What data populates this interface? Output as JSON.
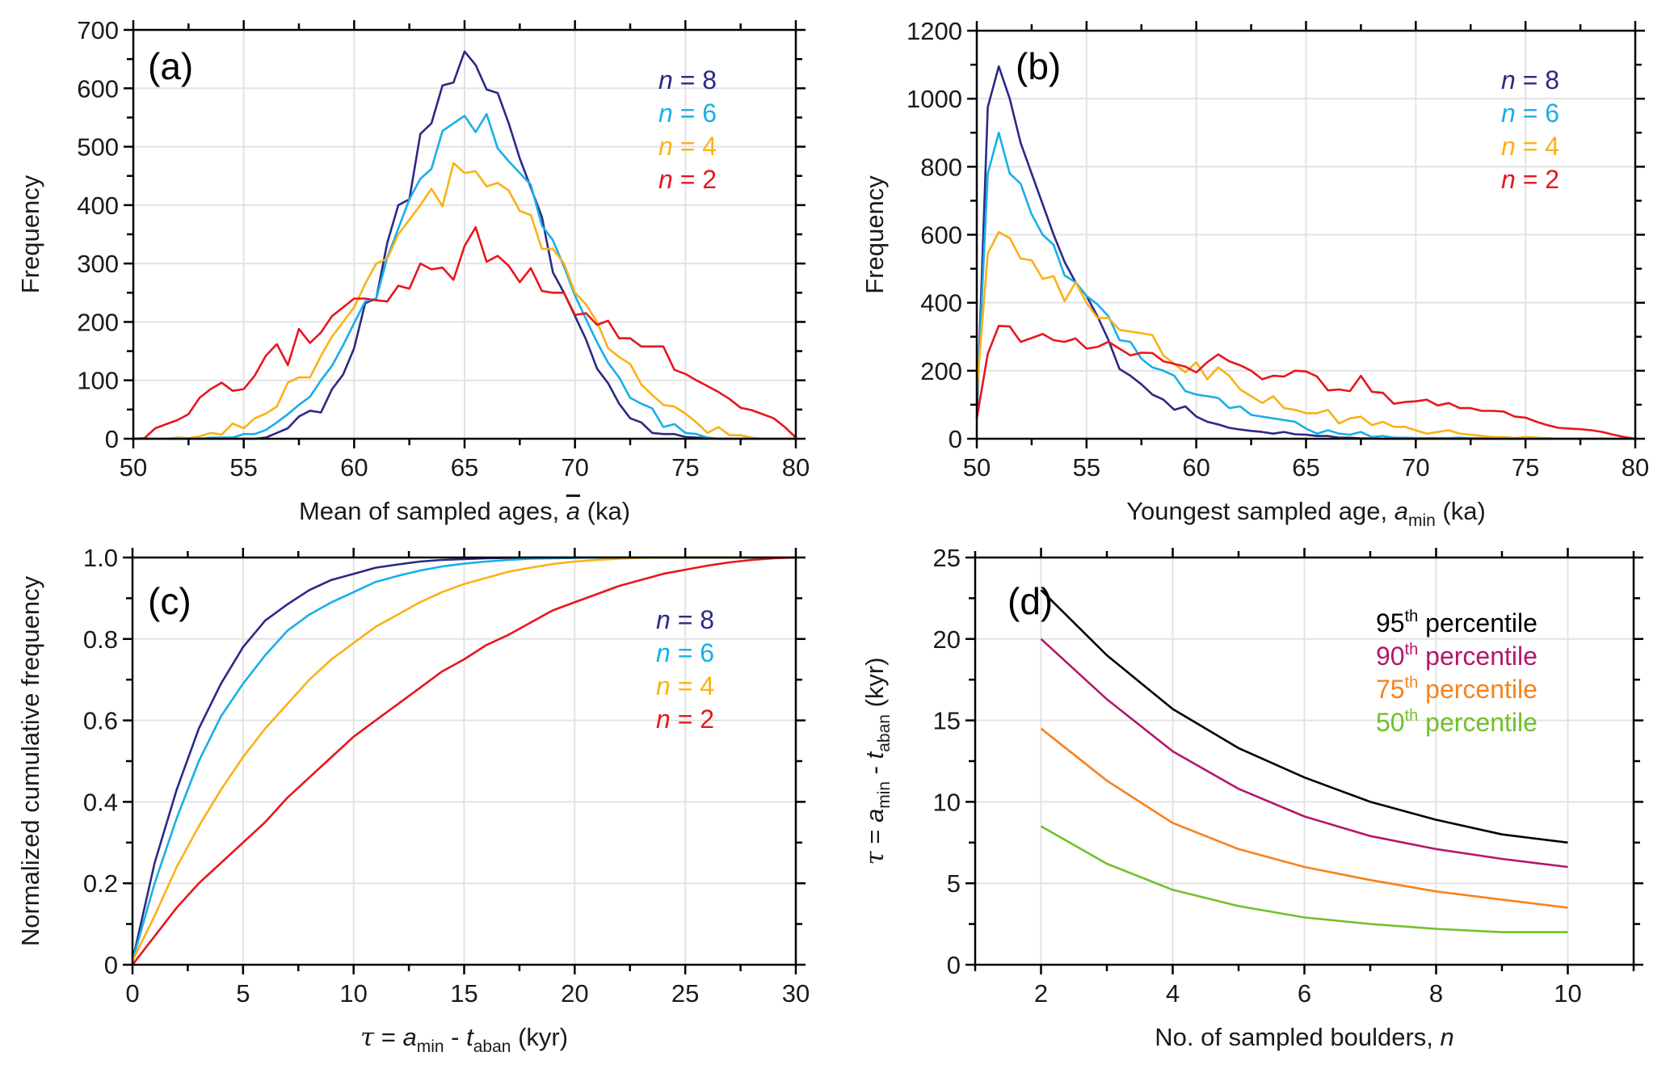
{
  "figure": {
    "legend_n": [
      {
        "italic": "n",
        "rest": " = 8",
        "color": "#2a2a86"
      },
      {
        "italic": "n",
        "rest": " = 6",
        "color": "#1aaee8"
      },
      {
        "italic": "n",
        "rest": " = 4",
        "color": "#fbb116"
      },
      {
        "italic": "n",
        "rest": " = 2",
        "color": "#e8161e"
      }
    ]
  },
  "chart_data": [
    {
      "id": "a",
      "type": "line",
      "panel_label": "(a)",
      "title": "",
      "xlabel": "Mean of sampled ages, ā (ka)",
      "xlabel_parts": {
        "pre": "Mean of sampled ages, ",
        "var": "a",
        "post": " (ka)"
      },
      "ylabel": "Frequency",
      "xlim": [
        50,
        80
      ],
      "ylim": [
        0,
        700
      ],
      "xticks": [
        50,
        55,
        60,
        65,
        70,
        75,
        80
      ],
      "yticks": [
        0,
        100,
        200,
        300,
        400,
        500,
        600,
        700
      ],
      "grid": true,
      "legend_position": "top-right",
      "x": [
        50,
        50.5,
        51,
        51.5,
        52,
        52.5,
        53,
        53.5,
        54,
        54.5,
        55,
        55.5,
        56,
        56.5,
        57,
        57.5,
        58,
        58.5,
        59,
        59.5,
        60,
        60.5,
        61,
        61.5,
        62,
        62.5,
        63,
        63.5,
        64,
        64.5,
        65,
        65.5,
        66,
        66.5,
        67,
        67.5,
        68,
        68.5,
        69,
        69.5,
        70,
        70.5,
        71,
        71.5,
        72,
        72.5,
        73,
        73.5,
        74,
        74.5,
        75,
        75.5,
        76,
        76.5,
        77,
        77.5,
        78,
        78.5,
        79,
        79.5,
        80
      ],
      "series": [
        {
          "name": "n = 8",
          "color": "#2a2a86",
          "values": [
            0,
            0,
            0,
            0,
            0,
            0,
            0,
            0,
            0,
            0,
            0,
            0,
            2,
            10,
            18,
            38,
            48,
            45,
            85,
            110,
            155,
            232,
            240,
            335,
            400,
            410,
            522,
            540,
            605,
            610,
            663,
            640,
            598,
            592,
            540,
            480,
            430,
            380,
            285,
            250,
            210,
            170,
            120,
            95,
            60,
            35,
            28,
            10,
            8,
            8,
            3,
            2,
            1,
            0,
            0,
            0,
            0,
            0,
            0,
            0,
            0
          ]
        },
        {
          "name": "n = 6",
          "color": "#1aaee8",
          "values": [
            0,
            0,
            0,
            0,
            0,
            0,
            0,
            2,
            2,
            2,
            8,
            8,
            15,
            28,
            42,
            58,
            72,
            100,
            125,
            160,
            198,
            235,
            240,
            310,
            360,
            410,
            445,
            462,
            527,
            540,
            553,
            525,
            556,
            497,
            475,
            455,
            435,
            365,
            340,
            295,
            245,
            205,
            165,
            130,
            105,
            70,
            60,
            52,
            20,
            25,
            10,
            8,
            2,
            0,
            0,
            0,
            0,
            0,
            0,
            0,
            0
          ]
        },
        {
          "name": "n = 4",
          "color": "#fbb116",
          "values": [
            0,
            0,
            0,
            0,
            2,
            1,
            4,
            10,
            7,
            26,
            18,
            35,
            43,
            55,
            96,
            105,
            105,
            142,
            175,
            200,
            225,
            265,
            300,
            308,
            350,
            375,
            400,
            428,
            398,
            472,
            455,
            458,
            432,
            438,
            425,
            390,
            383,
            325,
            325,
            300,
            250,
            230,
            200,
            155,
            140,
            128,
            93,
            75,
            58,
            55,
            43,
            28,
            10,
            20,
            6,
            6,
            2,
            0,
            0,
            0,
            0
          ]
        },
        {
          "name": "n = 2",
          "color": "#e8161e",
          "values": [
            0,
            1,
            18,
            25,
            32,
            42,
            70,
            85,
            96,
            82,
            85,
            108,
            142,
            162,
            126,
            188,
            164,
            182,
            210,
            225,
            240,
            240,
            237,
            235,
            262,
            257,
            300,
            290,
            293,
            272,
            330,
            362,
            303,
            313,
            296,
            268,
            292,
            253,
            250,
            250,
            212,
            215,
            195,
            202,
            172,
            172,
            158,
            158,
            158,
            118,
            111,
            100,
            90,
            80,
            68,
            53,
            49,
            42,
            35,
            20,
            2
          ]
        }
      ]
    },
    {
      "id": "b",
      "type": "line",
      "panel_label": "(b)",
      "title": "",
      "xlabel": "Youngest sampled age, a_min (ka)",
      "xlabel_parts": {
        "pre": "Youngest sampled age, ",
        "var": "a",
        "sub": "min",
        "post": " (ka)"
      },
      "ylabel": "Frequency",
      "xlim": [
        50,
        80
      ],
      "ylim": [
        0,
        1200
      ],
      "xticks": [
        50,
        55,
        60,
        65,
        70,
        75,
        80
      ],
      "yticks": [
        0,
        200,
        400,
        600,
        800,
        1000,
        1200
      ],
      "grid": true,
      "legend_position": "top-right",
      "x": [
        50,
        50.5,
        51,
        51.5,
        52,
        52.5,
        53,
        53.5,
        54,
        54.5,
        55,
        55.5,
        56,
        56.5,
        57,
        57.5,
        58,
        58.5,
        59,
        59.5,
        60,
        60.5,
        61,
        61.5,
        62,
        62.5,
        63,
        63.5,
        64,
        64.5,
        65,
        65.5,
        66,
        66.5,
        67,
        67.5,
        68,
        68.5,
        69,
        69.5,
        70,
        70.5,
        71,
        71.5,
        72,
        72.5,
        73,
        73.5,
        74,
        74.5,
        75,
        75.5,
        76,
        76.5,
        77,
        77.5,
        78,
        78.5,
        79,
        79.5,
        80
      ],
      "series": [
        {
          "name": "n = 8",
          "color": "#2a2a86",
          "values": [
            60,
            975,
            1095,
            1000,
            870,
            780,
            690,
            600,
            520,
            460,
            420,
            360,
            290,
            205,
            185,
            160,
            130,
            115,
            85,
            95,
            65,
            50,
            42,
            32,
            27,
            23,
            20,
            15,
            20,
            13,
            12,
            8,
            8,
            3,
            3,
            1,
            1,
            0,
            0,
            0,
            0,
            0,
            0,
            0,
            0,
            0,
            0,
            0,
            0,
            0,
            0,
            0,
            0,
            0,
            0,
            0,
            0,
            0,
            0,
            0,
            0
          ]
        },
        {
          "name": "n = 6",
          "color": "#1aaee8",
          "values": [
            100,
            780,
            900,
            780,
            750,
            660,
            600,
            570,
            480,
            460,
            420,
            395,
            360,
            290,
            285,
            235,
            210,
            200,
            185,
            140,
            130,
            125,
            120,
            90,
            95,
            70,
            65,
            60,
            55,
            50,
            30,
            15,
            25,
            15,
            12,
            20,
            5,
            8,
            3,
            3,
            2,
            2,
            2,
            2,
            3,
            2,
            1,
            1,
            0,
            0,
            0,
            0,
            0,
            0,
            0,
            0,
            0,
            0,
            0,
            0,
            0
          ]
        },
        {
          "name": "n = 4",
          "color": "#fbb116",
          "values": [
            140,
            545,
            608,
            590,
            530,
            525,
            470,
            478,
            405,
            460,
            400,
            355,
            355,
            320,
            315,
            310,
            305,
            245,
            220,
            195,
            225,
            175,
            210,
            185,
            145,
            125,
            105,
            125,
            90,
            85,
            75,
            75,
            85,
            45,
            60,
            65,
            40,
            50,
            35,
            35,
            25,
            15,
            20,
            25,
            15,
            12,
            8,
            5,
            5,
            2,
            5,
            3,
            2,
            0,
            0,
            0,
            0,
            0,
            0,
            0,
            0
          ]
        },
        {
          "name": "n = 2",
          "color": "#e8161e",
          "values": [
            60,
            250,
            332,
            330,
            285,
            296,
            308,
            290,
            285,
            295,
            265,
            270,
            285,
            265,
            245,
            253,
            252,
            228,
            220,
            212,
            195,
            225,
            248,
            228,
            216,
            200,
            175,
            185,
            183,
            200,
            198,
            183,
            142,
            145,
            140,
            185,
            138,
            135,
            103,
            108,
            110,
            115,
            98,
            105,
            90,
            90,
            82,
            82,
            80,
            65,
            62,
            50,
            40,
            32,
            30,
            28,
            25,
            20,
            12,
            5,
            0
          ]
        }
      ]
    },
    {
      "id": "c",
      "type": "line",
      "panel_label": "(c)",
      "title": "",
      "xlabel": "τ = a_min - t_aban (kyr)",
      "ylabel": "Normalized cumulative frequency",
      "xlim": [
        0,
        30
      ],
      "ylim": [
        0,
        1.0
      ],
      "xticks": [
        0,
        5,
        10,
        15,
        20,
        25,
        30
      ],
      "yticks": [
        0,
        0.2,
        0.4,
        0.6,
        0.8,
        1.0
      ],
      "ytick_labels": [
        "0",
        "0.2",
        "0.4",
        "0.6",
        "0.8",
        "1.0"
      ],
      "grid": true,
      "legend_position": "top-right",
      "x": [
        0,
        1,
        2,
        3,
        4,
        5,
        6,
        7,
        8,
        9,
        10,
        11,
        12,
        13,
        14,
        15,
        16,
        17,
        18,
        19,
        20,
        21,
        22,
        23,
        24,
        25,
        26,
        27,
        28,
        29,
        30
      ],
      "series": [
        {
          "name": "n = 8",
          "color": "#2a2a86",
          "values": [
            0.01,
            0.25,
            0.43,
            0.58,
            0.69,
            0.78,
            0.845,
            0.885,
            0.92,
            0.945,
            0.96,
            0.975,
            0.983,
            0.99,
            0.994,
            0.996,
            0.998,
            0.999,
            1.0,
            1.0,
            1.0,
            1.0,
            1.0,
            1.0,
            1.0,
            1.0,
            1.0,
            1.0,
            1.0,
            1.0,
            1.0
          ]
        },
        {
          "name": "n = 6",
          "color": "#1aaee8",
          "values": [
            0.01,
            0.2,
            0.36,
            0.5,
            0.61,
            0.69,
            0.76,
            0.82,
            0.86,
            0.89,
            0.915,
            0.94,
            0.955,
            0.968,
            0.978,
            0.985,
            0.99,
            0.994,
            0.997,
            0.998,
            0.999,
            1.0,
            1.0,
            1.0,
            1.0,
            1.0,
            1.0,
            1.0,
            1.0,
            1.0,
            1.0
          ]
        },
        {
          "name": "n = 4",
          "color": "#fbb116",
          "values": [
            0.01,
            0.12,
            0.24,
            0.34,
            0.43,
            0.51,
            0.58,
            0.64,
            0.7,
            0.75,
            0.79,
            0.83,
            0.86,
            0.89,
            0.915,
            0.935,
            0.95,
            0.965,
            0.975,
            0.984,
            0.99,
            0.994,
            0.997,
            0.999,
            1.0,
            1.0,
            1.0,
            1.0,
            1.0,
            1.0,
            1.0
          ]
        },
        {
          "name": "n = 2",
          "color": "#e8161e",
          "values": [
            0.0,
            0.07,
            0.14,
            0.2,
            0.25,
            0.3,
            0.35,
            0.41,
            0.46,
            0.51,
            0.56,
            0.6,
            0.64,
            0.68,
            0.72,
            0.75,
            0.785,
            0.81,
            0.84,
            0.87,
            0.89,
            0.91,
            0.93,
            0.945,
            0.96,
            0.97,
            0.98,
            0.988,
            0.994,
            0.998,
            1.0
          ]
        }
      ]
    },
    {
      "id": "d",
      "type": "line",
      "panel_label": "(d)",
      "title": "",
      "xlabel": "No. of sampled boulders, n",
      "xlabel_parts": {
        "pre": "No. of sampled boulders, ",
        "var": "n"
      },
      "ylabel": "τ = a_min - t_aban (kyr)",
      "xlim": [
        1,
        11
      ],
      "ylim": [
        0,
        25
      ],
      "xticks": [
        2,
        4,
        6,
        8,
        10
      ],
      "xminor": [
        1,
        3,
        5,
        7,
        9,
        11
      ],
      "yticks": [
        0,
        5,
        10,
        15,
        20,
        25
      ],
      "grid": true,
      "legend_position": "top-right",
      "x": [
        2,
        3,
        4,
        5,
        6,
        7,
        8,
        9,
        10
      ],
      "series": [
        {
          "name": "95th percentile",
          "num": "95",
          "sup": "th",
          "label": " percentile",
          "color": "#000000",
          "values": [
            23.0,
            19.0,
            15.7,
            13.3,
            11.5,
            10.0,
            8.9,
            8.0,
            7.5
          ]
        },
        {
          "name": "90th percentile",
          "num": "90",
          "sup": "th",
          "label": " percentile",
          "color": "#b5166b",
          "values": [
            20.0,
            16.3,
            13.1,
            10.8,
            9.1,
            7.9,
            7.1,
            6.5,
            6.0
          ]
        },
        {
          "name": "75th percentile",
          "num": "75",
          "sup": "th",
          "label": " percentile",
          "color": "#f7821c",
          "values": [
            14.5,
            11.3,
            8.7,
            7.1,
            6.0,
            5.2,
            4.5,
            4.0,
            3.5
          ]
        },
        {
          "name": "50th percentile",
          "num": "50",
          "sup": "th",
          "label": " percentile",
          "color": "#72c02c",
          "values": [
            8.5,
            6.2,
            4.6,
            3.6,
            2.9,
            2.5,
            2.2,
            2.0,
            2.0
          ]
        }
      ]
    }
  ]
}
